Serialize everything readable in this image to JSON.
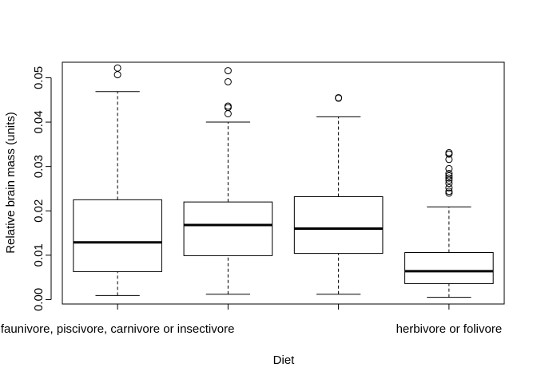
{
  "chart_data": {
    "type": "boxplot",
    "title": "",
    "xlabel": "Diet",
    "ylabel": "Relative brain mass (units)",
    "ylim": [
      -0.001,
      0.0535
    ],
    "yticks": [
      0.0,
      0.01,
      0.02,
      0.03,
      0.04,
      0.05
    ],
    "ytick_labels": [
      "0.00",
      "0.01",
      "0.02",
      "0.03",
      "0.04",
      "0.05"
    ],
    "grid": false,
    "legend": "none",
    "xtick_labels": [
      {
        "group": 1,
        "label": "faunivore, piscivore, carnivore or insectivore"
      },
      {
        "group": 4,
        "label": "herbivore or folivore"
      }
    ],
    "groups": [
      {
        "whisker_low": 0.0009,
        "q1": 0.0063,
        "median": 0.0129,
        "q3": 0.0225,
        "whisker_high": 0.0469,
        "outliers": [
          0.0522,
          0.0507
        ]
      },
      {
        "whisker_low": 0.0012,
        "q1": 0.0099,
        "median": 0.0168,
        "q3": 0.022,
        "whisker_high": 0.04,
        "outliers": [
          0.0516,
          0.0491,
          0.0436,
          0.0433,
          0.0419
        ]
      },
      {
        "whisker_low": 0.0012,
        "q1": 0.0104,
        "median": 0.016,
        "q3": 0.0232,
        "whisker_high": 0.0412,
        "outliers": [
          0.0455,
          0.0454
        ]
      },
      {
        "whisker_low": 0.0005,
        "q1": 0.0036,
        "median": 0.0064,
        "q3": 0.0106,
        "whisker_high": 0.0209,
        "outliers": [
          0.0331,
          0.0328,
          0.0316,
          0.0295,
          0.0284,
          0.0279,
          0.0274,
          0.0269,
          0.0262,
          0.0252,
          0.0244,
          0.024
        ]
      }
    ]
  }
}
